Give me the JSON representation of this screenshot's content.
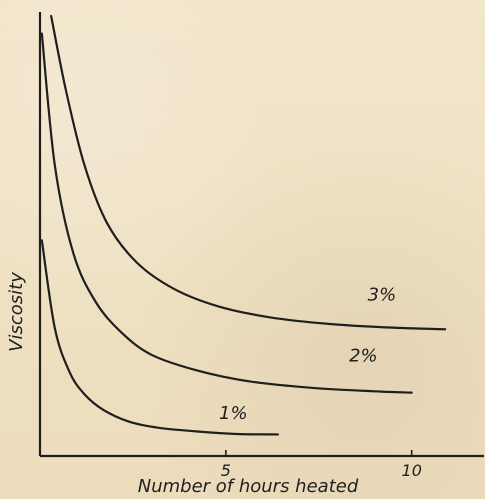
{
  "chart_data": {
    "type": "line",
    "xlabel": "Number of hours heated",
    "ylabel": "Viscosity",
    "xticks": [
      "5",
      "10"
    ],
    "xlim": [
      0,
      10.6
    ],
    "ylim": [
      0,
      100
    ],
    "grid": false,
    "series": [
      {
        "name": "1%",
        "x": [
          0.05,
          0.4,
          0.8,
          1.2,
          1.7,
          2.4,
          3.2,
          4.2,
          5.3,
          6.4
        ],
        "y": [
          49,
          29,
          19,
          14,
          10.5,
          7.8,
          6.4,
          5.6,
          5.0,
          4.9
        ]
      },
      {
        "name": "2%",
        "x": [
          0.05,
          0.4,
          0.9,
          1.5,
          2.2,
          3.0,
          4.2,
          5.6,
          7.3,
          9.0,
          10.0
        ],
        "y": [
          96,
          66,
          46,
          35,
          28,
          23,
          19.5,
          17,
          15.5,
          14.7,
          14.4
        ]
      },
      {
        "name": "3%",
        "x": [
          0.3,
          0.7,
          1.2,
          1.8,
          2.6,
          3.6,
          4.8,
          6.2,
          7.8,
          9.4,
          10.9
        ],
        "y": [
          100,
          83,
          66,
          53,
          44,
          38,
          34,
          31.5,
          30,
          29.2,
          28.8
        ]
      }
    ]
  }
}
